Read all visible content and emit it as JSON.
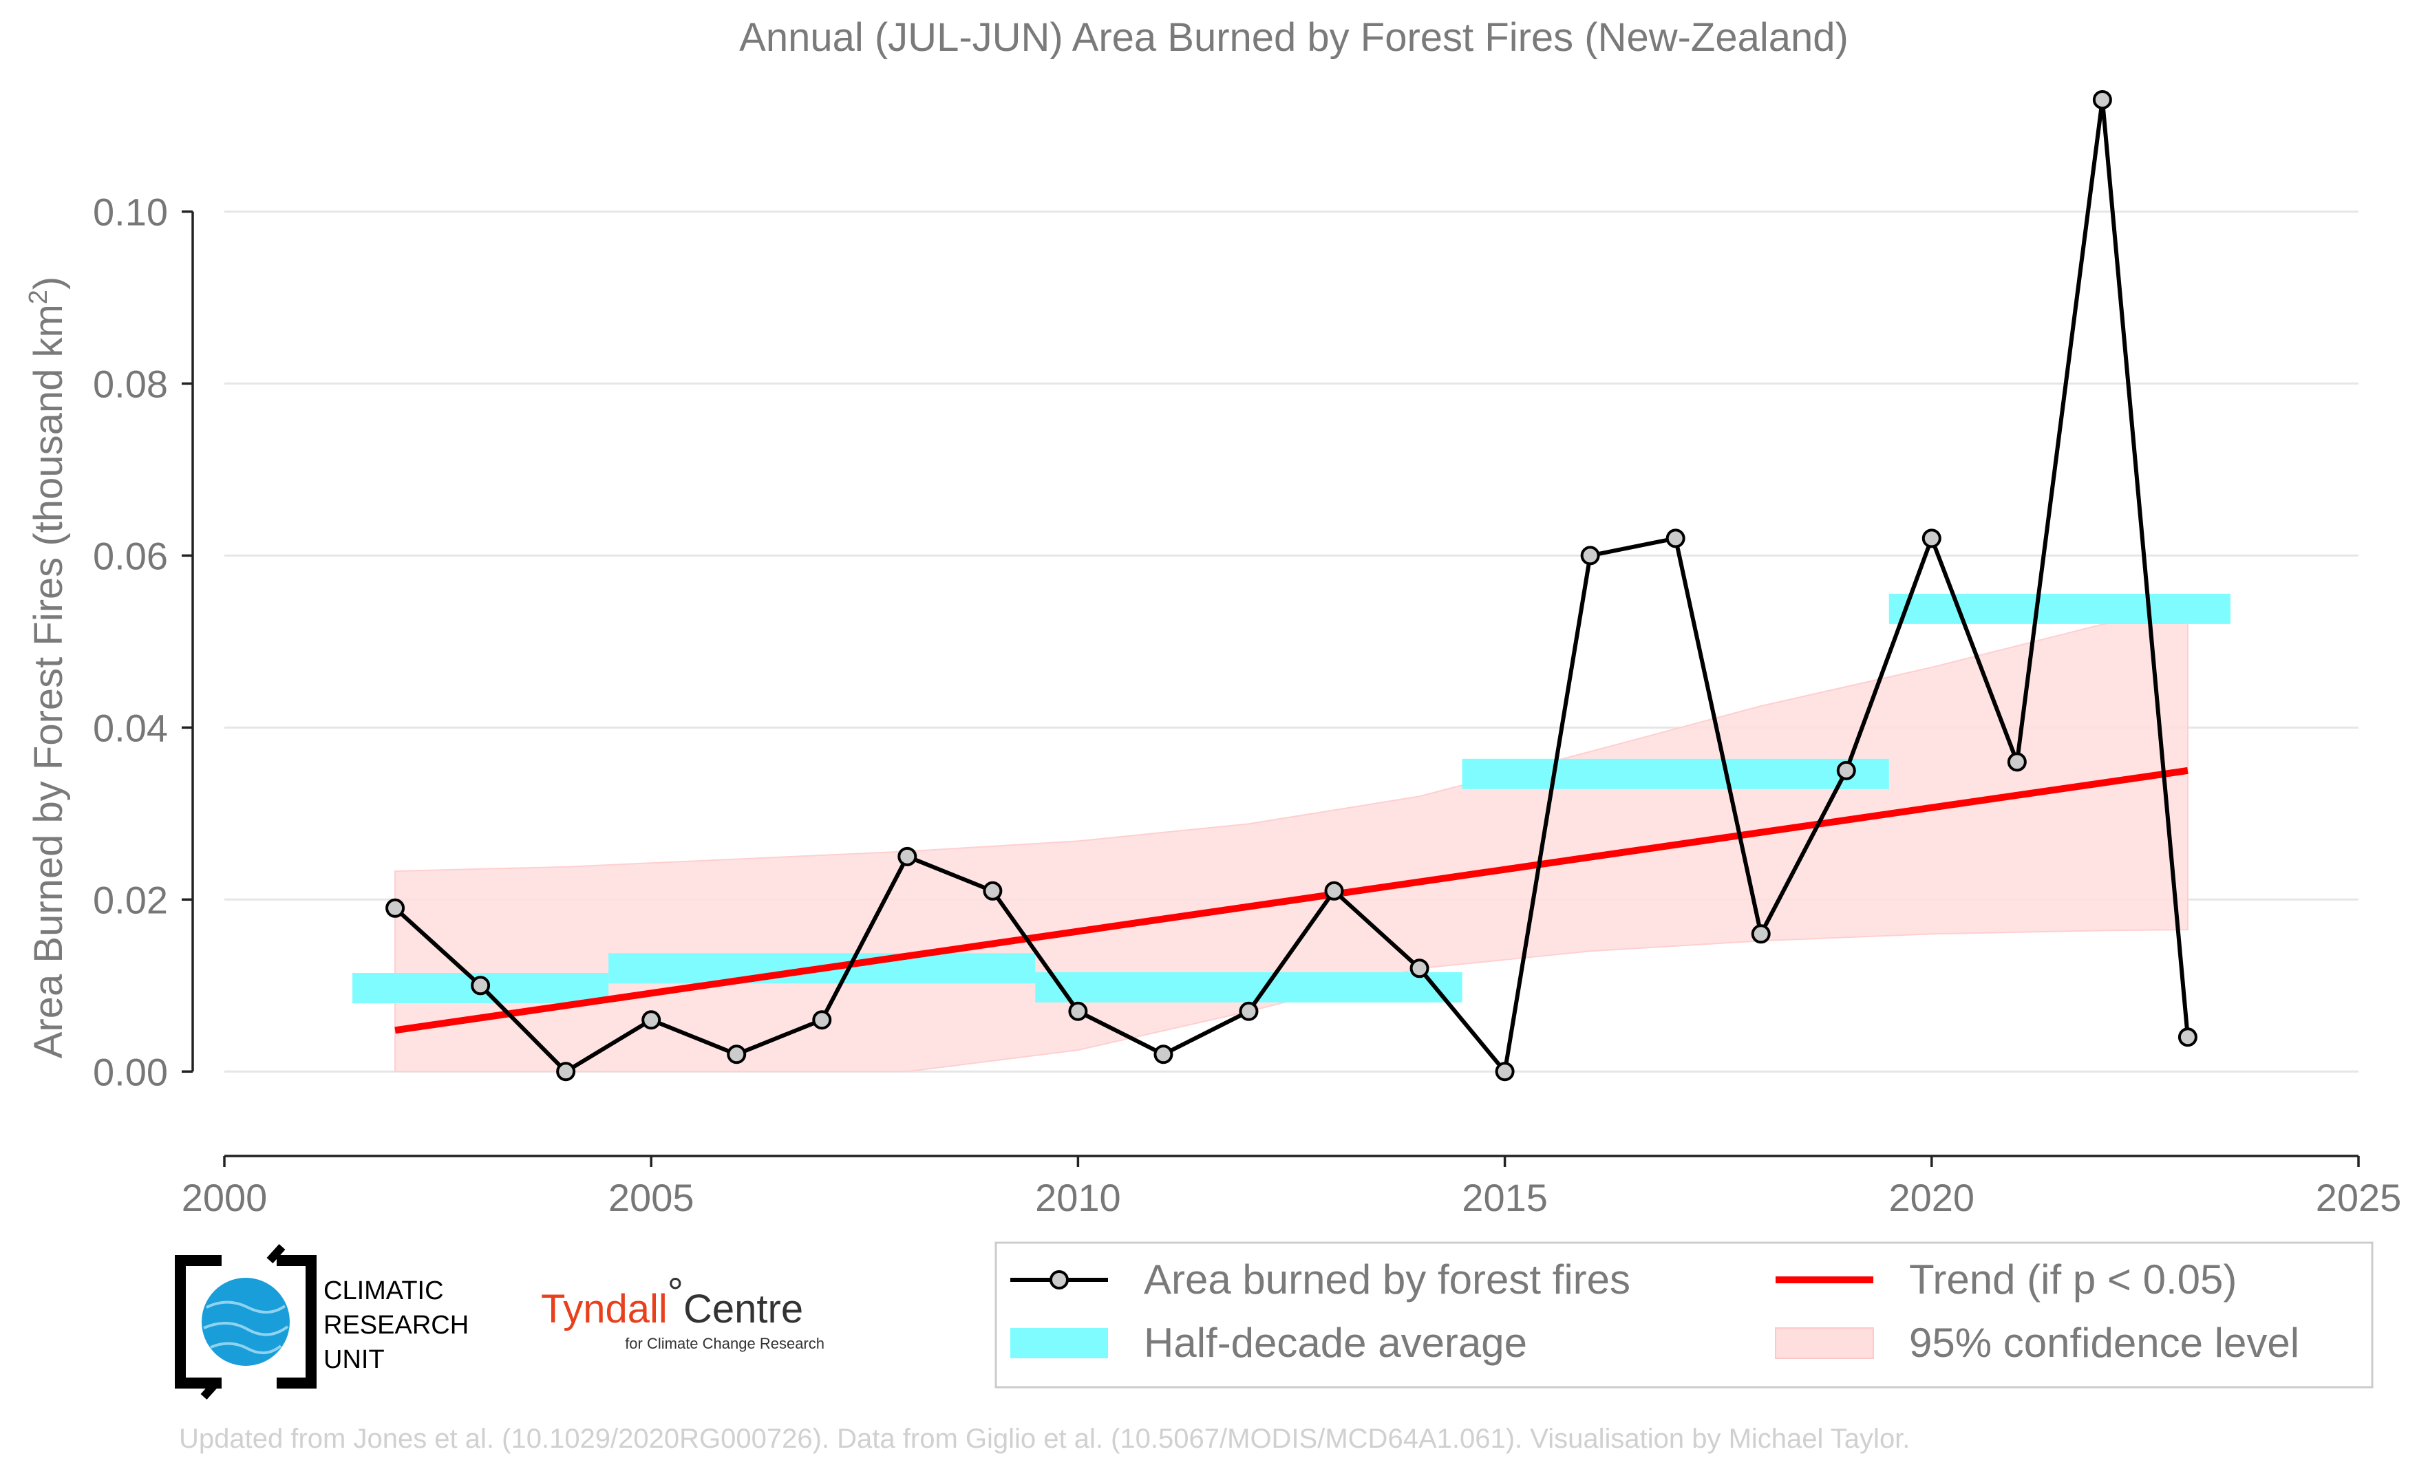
{
  "chart_data": {
    "type": "line",
    "title": "Annual (JUL-JUN) Area Burned by Forest Fires (New-Zealand)",
    "xlabel": "",
    "ylabel": "Area Burned by Forest Fires (thousand km",
    "ylabel_superscript": "2",
    "ylabel_close": ")",
    "xlim": [
      2000,
      2025
    ],
    "ylim": [
      -0.0095,
      0.115
    ],
    "xticks": [
      2000,
      2005,
      2010,
      2015,
      2020,
      2025
    ],
    "xtick_labels": [
      "2000",
      "2005",
      "2010",
      "2015",
      "2020",
      "2025"
    ],
    "yticks": [
      0.0,
      0.02,
      0.04,
      0.06,
      0.08,
      0.1
    ],
    "ytick_labels": [
      "0.00",
      "0.02",
      "0.04",
      "0.06",
      "0.08",
      "0.10"
    ],
    "grid": "horizontal",
    "series": [
      {
        "name": "Area burned by forest fires",
        "kind": "line-markers",
        "color": "#000000",
        "marker_fill": "#cccccc",
        "x": [
          2002,
          2003,
          2004,
          2005,
          2006,
          2007,
          2008,
          2009,
          2010,
          2011,
          2012,
          2013,
          2014,
          2015,
          2016,
          2017,
          2018,
          2019,
          2020,
          2021,
          2022,
          2023
        ],
        "y": [
          0.019,
          0.01,
          0.0,
          0.006,
          0.002,
          0.006,
          0.025,
          0.021,
          0.007,
          0.002,
          0.007,
          0.021,
          0.012,
          0.0,
          0.06,
          0.062,
          0.016,
          0.035,
          0.062,
          0.036,
          0.113,
          0.004
        ]
      },
      {
        "name": "Half-decade average",
        "kind": "step-bars",
        "color": "#7ffcff",
        "segments": [
          {
            "x0": 2001.5,
            "x1": 2004.5,
            "y": 0.0097
          },
          {
            "x0": 2004.5,
            "x1": 2009.5,
            "y": 0.012
          },
          {
            "x0": 2009.5,
            "x1": 2014.5,
            "y": 0.0098
          },
          {
            "x0": 2014.5,
            "x1": 2019.5,
            "y": 0.0346
          },
          {
            "x0": 2019.5,
            "x1": 2023.5,
            "y": 0.0538
          }
        ]
      },
      {
        "name": "Trend (if p < 0.05)",
        "kind": "trend-line",
        "color": "#ff0000",
        "x": [
          2002,
          2023
        ],
        "y": [
          0.0048,
          0.035
        ]
      },
      {
        "name": "95% confidence level",
        "kind": "band",
        "color": "#ffdede",
        "x": [
          2002,
          2004,
          2006,
          2008,
          2010,
          2012,
          2014,
          2016,
          2018,
          2020,
          2022,
          2023
        ],
        "upper": [
          0.0233,
          0.0238,
          0.0247,
          0.0256,
          0.0268,
          0.0288,
          0.032,
          0.0372,
          0.0425,
          0.047,
          0.052,
          0.0535
        ],
        "lower": [
          0.0,
          0.0,
          0.0,
          0.0,
          0.0025,
          0.007,
          0.012,
          0.014,
          0.0152,
          0.016,
          0.0164,
          0.0165
        ]
      }
    ],
    "legend": {
      "placement": "bottom-right",
      "entries": [
        "Area burned by forest fires",
        "Trend (if p < 0.05)",
        "Half-decade average",
        "95% confidence level"
      ]
    }
  },
  "logos": {
    "cru_line1": "CLIMATIC",
    "cru_line2": "RESEARCH",
    "cru_line3": "UNIT",
    "tyndall_main": "Tyndall",
    "tyndall_degree": "°",
    "tyndall_centre": "Centre",
    "tyndall_sub": "for Climate Change Research"
  },
  "footer": "Updated from Jones et al. (10.1029/2020RG000726). Data from Giglio et al. (10.5067/MODIS/MCD64A1.061). Visualisation by Michael Taylor."
}
